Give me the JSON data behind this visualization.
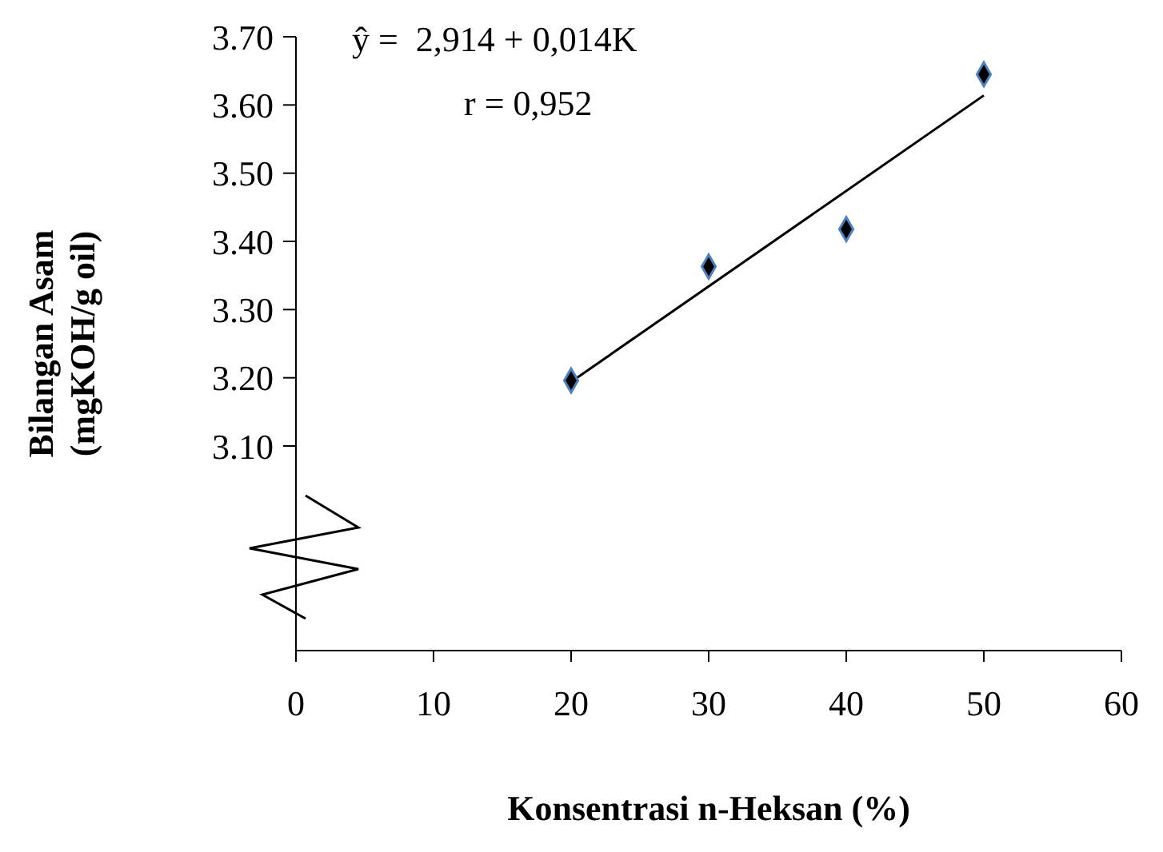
{
  "chart_data": {
    "type": "scatter",
    "xlabel": "Konsentrasi n-Heksan (%)",
    "ylabel": "Bilangan Asam\n(mgKOH/g oil)",
    "series": [
      {
        "color": "#000000",
        "x": [
          20,
          30,
          40,
          50
        ],
        "values": [
          3.196,
          3.363,
          3.418,
          3.645
        ],
        "marker": "diamond"
      },
      {
        "type": "line",
        "color": "#000000",
        "x": [
          20,
          50
        ],
        "values": [
          3.194,
          3.614
        ],
        "marker": "none"
      }
    ],
    "xlim": [
      0,
      60
    ],
    "xticks": [
      0,
      10,
      20,
      30,
      40,
      50,
      60
    ],
    "ylim": [
      2.8,
      3.7
    ],
    "yticks": [
      {
        "value": 3.1,
        "label": "3.10"
      },
      {
        "value": 3.2,
        "label": "3.20"
      },
      {
        "value": 3.3,
        "label": "3.30"
      },
      {
        "value": 3.4,
        "label": "3.40"
      },
      {
        "value": 3.5,
        "label": "3.50"
      },
      {
        "value": 3.6,
        "label": "3.60"
      },
      {
        "value": 3.7,
        "label": "3.70"
      }
    ],
    "grid": false,
    "annotations": [
      "ŷ =  2,914 + 0,014K",
      "r = 0,952"
    ]
  }
}
